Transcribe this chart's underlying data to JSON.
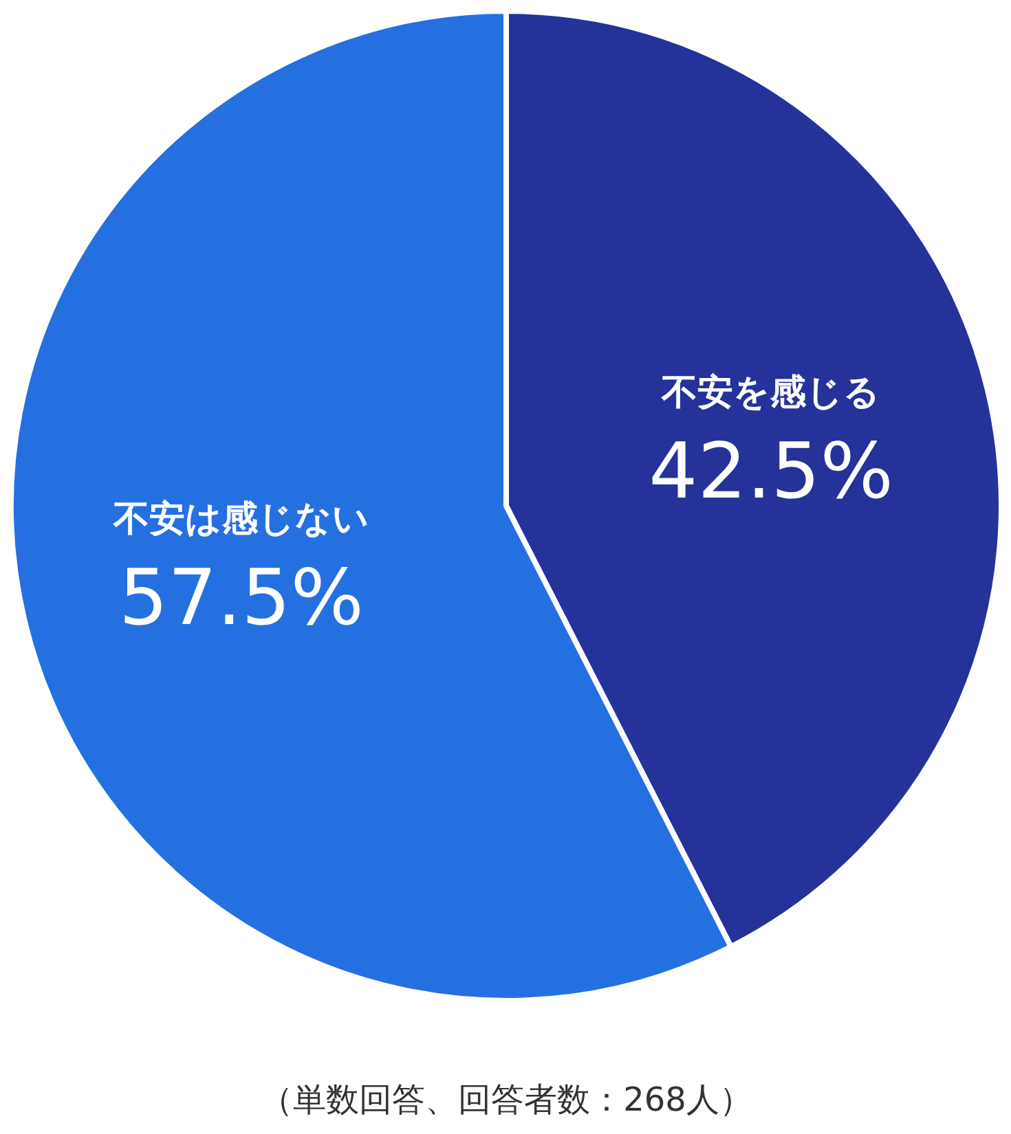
{
  "chart_data": {
    "type": "pie",
    "categories": [
      "不安を感じる",
      "不安は感じない"
    ],
    "values": [
      42.5,
      57.5
    ],
    "colors": [
      "#24329a",
      "#2570e0"
    ],
    "value_labels": [
      "42.5%",
      "57.5%"
    ],
    "annotations": [
      "（単数回答、回答者数：268人）"
    ],
    "legend": false
  }
}
